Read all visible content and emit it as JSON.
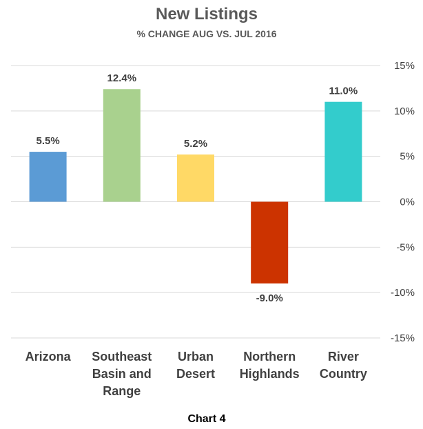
{
  "chart_data": {
    "type": "bar",
    "title": "New Listings",
    "subtitle": "% CHANGE AUG VS. JUL 2016",
    "categories": [
      [
        "Arizona"
      ],
      [
        "Southeast",
        "Basin and",
        "Range"
      ],
      [
        "Urban",
        "Desert"
      ],
      [
        "Northern",
        "Highlands"
      ],
      [
        "River",
        "Country"
      ]
    ],
    "values": [
      5.5,
      12.4,
      5.2,
      -9.0,
      11.0
    ],
    "data_labels": [
      "5.5%",
      "12.4%",
      "5.2%",
      "-9.0%",
      "11.0%"
    ],
    "colors": [
      "#5b9bd5",
      "#a9d18e",
      "#ffd966",
      "#cc3300",
      "#33cccc"
    ],
    "ylim": [
      -15,
      15
    ],
    "yticks": [
      15,
      10,
      5,
      0,
      -5,
      -10,
      -15
    ],
    "ytick_labels": [
      "15%",
      "10%",
      "5%",
      "0%",
      "-5%",
      "-10%",
      "-15%"
    ],
    "y_axis_position": "right",
    "grid": true,
    "xlabel": "",
    "ylabel": ""
  },
  "caption": "Chart 4"
}
